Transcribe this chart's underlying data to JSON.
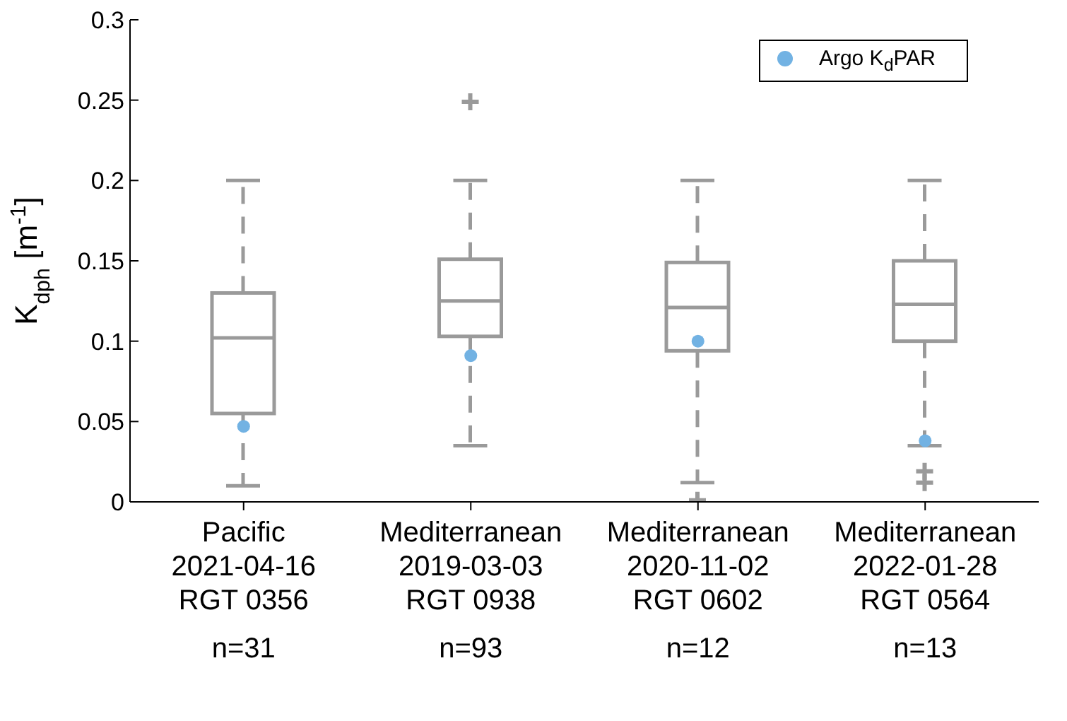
{
  "chart_data": {
    "type": "box",
    "ylabel": "K$_{dph}$ [m$^{-1}$]",
    "categories": [
      "Pacific\n2021-04-16\nRGT 0356",
      "Mediterranean\n2019-03-03\nRGT 0938",
      "Mediterranean\n2020-11-02\nRGT 0602",
      "Mediterranean\n2022-01-28\nRGT 0564"
    ],
    "boxes": [
      {
        "low": 0.01,
        "q1": 0.055,
        "median": 0.102,
        "q3": 0.13,
        "high": 0.2
      },
      {
        "low": 0.035,
        "q1": 0.103,
        "median": 0.125,
        "q3": 0.151,
        "high": 0.2,
        "outliers": [
          0.249
        ]
      },
      {
        "low": 0.012,
        "q1": 0.094,
        "median": 0.121,
        "q3": 0.149,
        "high": 0.2,
        "outliers": [
          0.001
        ]
      },
      {
        "low": 0.035,
        "q1": 0.1,
        "median": 0.123,
        "q3": 0.15,
        "high": 0.2,
        "outliers": [
          0.019,
          0.012
        ]
      }
    ],
    "color": "#9a9a9a",
    "series": [
      {
        "type": "scatter",
        "name": "Argo K$_{d}$PAR",
        "color": "#72b2e3",
        "x": [
          "Pacific\n2021-04-16\nRGT 0356",
          "Mediterranean\n2019-03-03\nRGT 0938",
          "Mediterranean\n2020-11-02\nRGT 0602",
          "Mediterranean\n2022-01-28\nRGT 0564"
        ],
        "values": [
          0.047,
          0.091,
          0.1,
          0.038
        ]
      }
    ],
    "annotations": [
      "n=31",
      "n=93",
      "n=12",
      "n=13"
    ],
    "ylim": [
      0,
      0.3
    ],
    "yticks": [
      0,
      0.05,
      0.1,
      0.15,
      0.2,
      0.25,
      0.3
    ],
    "grid": false,
    "legend": "top right",
    "marker": "circle"
  }
}
